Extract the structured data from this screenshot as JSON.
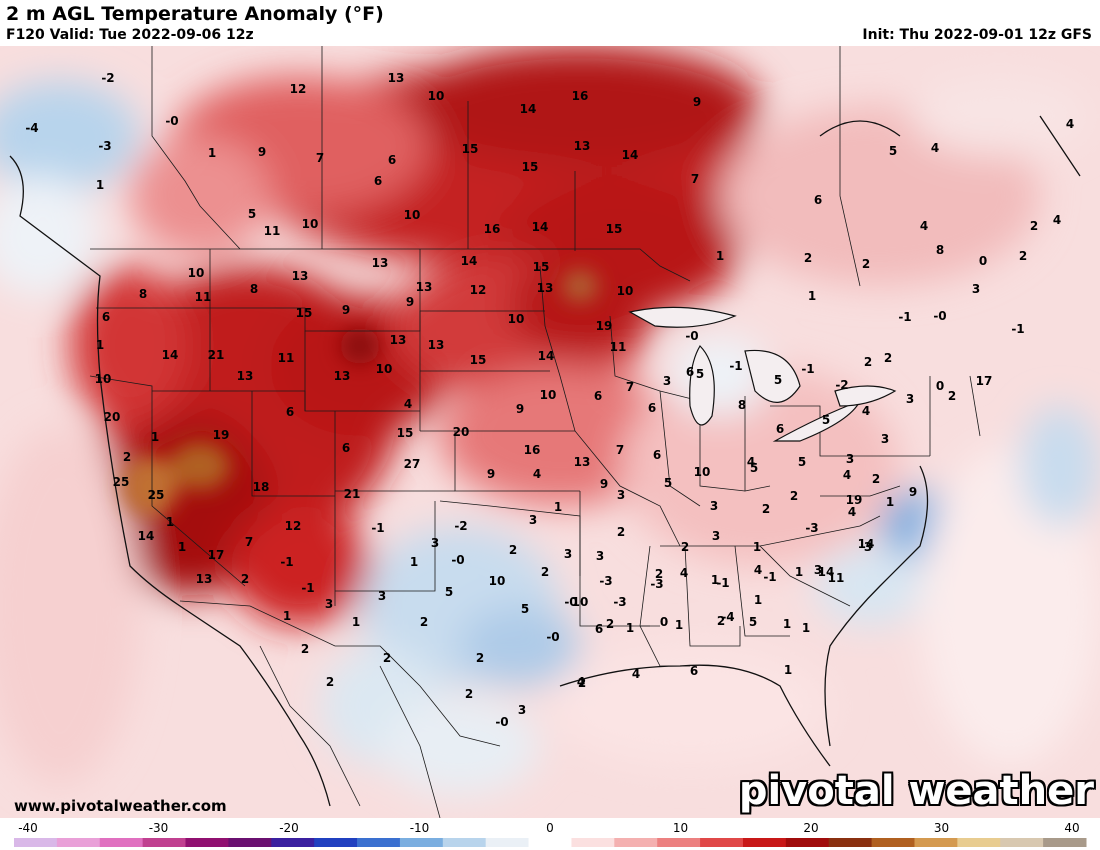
{
  "header": {
    "title": "2 m AGL Temperature Anomaly (°F)",
    "valid": "F120 Valid: Tue 2022-09-06 12z",
    "init": "Init: Thu 2022-09-01 12z GFS"
  },
  "footer": {
    "website": "www.pivotalweather.com",
    "brand": "pivotal weather"
  },
  "colorbar": {
    "ticks": [
      "-40",
      "-30",
      "-20",
      "-10",
      "0",
      "10",
      "20",
      "30",
      "40"
    ],
    "colors": [
      "#d9b8e8",
      "#e9a0d8",
      "#e070c0",
      "#c04090",
      "#901070",
      "#6a1070",
      "#3a20a0",
      "#2040c0",
      "#3a70d0",
      "#7aaee0",
      "#b8d4ec",
      "#eaf0f6",
      "#ffffff",
      "#fbe0e0",
      "#f4b0b0",
      "#ec8080",
      "#e04848",
      "#c81818",
      "#a00c0c",
      "#8a3010",
      "#b06020",
      "#d49a50",
      "#e8cc90",
      "#d8c8b0",
      "#a89a8a"
    ]
  },
  "map_labels": [
    {
      "t": "-2"
    },
    {
      "t": "-4"
    },
    {
      "t": "-3"
    },
    {
      "t": "-0"
    },
    {
      "t": "1"
    },
    {
      "t": "12"
    },
    {
      "t": "13"
    },
    {
      "t": "10"
    },
    {
      "t": "14"
    },
    {
      "t": "16"
    },
    {
      "t": "9"
    },
    {
      "t": "1"
    },
    {
      "t": "9"
    },
    {
      "t": "7"
    },
    {
      "t": "6"
    },
    {
      "t": "15"
    },
    {
      "t": "13"
    },
    {
      "t": "14"
    },
    {
      "t": "5"
    },
    {
      "t": "4"
    },
    {
      "t": "4"
    },
    {
      "t": "6"
    },
    {
      "t": "15"
    },
    {
      "t": "10"
    },
    {
      "t": "7"
    },
    {
      "t": "5"
    },
    {
      "t": "11"
    },
    {
      "t": "10"
    },
    {
      "t": "16"
    },
    {
      "t": "14"
    },
    {
      "t": "15"
    },
    {
      "t": "6"
    },
    {
      "t": "4"
    },
    {
      "t": "4"
    },
    {
      "t": "2"
    },
    {
      "t": "10"
    },
    {
      "t": "11"
    },
    {
      "t": "8"
    },
    {
      "t": "13"
    },
    {
      "t": "13"
    },
    {
      "t": "14"
    },
    {
      "t": "15"
    },
    {
      "t": "13"
    },
    {
      "t": "13"
    },
    {
      "t": "12"
    },
    {
      "t": "10"
    },
    {
      "t": "1"
    },
    {
      "t": "2"
    },
    {
      "t": "2"
    },
    {
      "t": "0"
    },
    {
      "t": "8"
    },
    {
      "t": "8"
    },
    {
      "t": "15"
    },
    {
      "t": "9"
    },
    {
      "t": "10"
    },
    {
      "t": "2"
    },
    {
      "t": "1"
    },
    {
      "t": "6"
    },
    {
      "t": "13"
    },
    {
      "t": "19"
    },
    {
      "t": "-0"
    },
    {
      "t": "-1"
    },
    {
      "t": "-0"
    },
    {
      "t": "3"
    },
    {
      "t": "1"
    },
    {
      "t": "14"
    },
    {
      "t": "21"
    },
    {
      "t": "11"
    },
    {
      "t": "13"
    },
    {
      "t": "13"
    },
    {
      "t": "10"
    },
    {
      "t": "11"
    },
    {
      "t": "-1"
    },
    {
      "t": "2"
    },
    {
      "t": "6"
    },
    {
      "t": "14"
    },
    {
      "t": "15"
    },
    {
      "t": "13"
    },
    {
      "t": "10"
    },
    {
      "t": "9"
    },
    {
      "t": "10"
    },
    {
      "t": "7"
    },
    {
      "t": "3"
    },
    {
      "t": "5"
    },
    {
      "t": "-1"
    },
    {
      "t": "5"
    },
    {
      "t": "-1"
    },
    {
      "t": "-2"
    },
    {
      "t": "2"
    },
    {
      "t": "0"
    },
    {
      "t": "17"
    },
    {
      "t": "20"
    },
    {
      "t": "6"
    },
    {
      "t": "4"
    },
    {
      "t": "9"
    },
    {
      "t": "6"
    },
    {
      "t": "6"
    },
    {
      "t": "8"
    },
    {
      "t": "6"
    },
    {
      "t": "5"
    },
    {
      "t": "4"
    },
    {
      "t": "3"
    },
    {
      "t": "2"
    },
    {
      "t": "1"
    },
    {
      "t": "19"
    },
    {
      "t": "15"
    },
    {
      "t": "20"
    },
    {
      "t": "6"
    },
    {
      "t": "16"
    },
    {
      "t": "7"
    },
    {
      "t": "6"
    },
    {
      "t": "10"
    },
    {
      "t": "4"
    },
    {
      "t": "5"
    },
    {
      "t": "3"
    },
    {
      "t": "3"
    },
    {
      "t": "2"
    },
    {
      "t": "25"
    },
    {
      "t": "25"
    },
    {
      "t": "27"
    },
    {
      "t": "9"
    },
    {
      "t": "4"
    },
    {
      "t": "9"
    },
    {
      "t": "5"
    },
    {
      "t": "5"
    },
    {
      "t": "4"
    },
    {
      "t": "2"
    },
    {
      "t": "1"
    },
    {
      "t": "1"
    },
    {
      "t": "18"
    },
    {
      "t": "21"
    },
    {
      "t": "13"
    },
    {
      "t": "3"
    },
    {
      "t": "3"
    },
    {
      "t": "2"
    },
    {
      "t": "2"
    },
    {
      "t": "4"
    },
    {
      "t": "9"
    },
    {
      "t": "14"
    },
    {
      "t": "7"
    },
    {
      "t": "12"
    },
    {
      "t": "-1"
    },
    {
      "t": "-2"
    },
    {
      "t": "3"
    },
    {
      "t": "3"
    },
    {
      "t": "1"
    },
    {
      "t": "2"
    },
    {
      "t": "2"
    },
    {
      "t": "3"
    },
    {
      "t": "1"
    },
    {
      "t": "-3"
    },
    {
      "t": "19"
    },
    {
      "t": "14"
    },
    {
      "t": "17"
    },
    {
      "t": "1"
    },
    {
      "t": "-1"
    },
    {
      "t": "1"
    },
    {
      "t": "-0"
    },
    {
      "t": "2"
    },
    {
      "t": "3"
    },
    {
      "t": "3"
    },
    {
      "t": "4"
    },
    {
      "t": "1"
    },
    {
      "t": "-1"
    },
    {
      "t": "11"
    },
    {
      "t": "14"
    },
    {
      "t": "13"
    },
    {
      "t": "2"
    },
    {
      "t": "-1"
    },
    {
      "t": "3"
    },
    {
      "t": "5"
    },
    {
      "t": "10"
    },
    {
      "t": "2"
    },
    {
      "t": "-3"
    },
    {
      "t": "-3"
    },
    {
      "t": "-1"
    },
    {
      "t": "1"
    },
    {
      "t": "3"
    },
    {
      "t": "3"
    },
    {
      "t": "1"
    },
    {
      "t": "-3"
    },
    {
      "t": "10"
    },
    {
      "t": "2"
    },
    {
      "t": "-4"
    },
    {
      "t": "1"
    },
    {
      "t": "5"
    },
    {
      "t": "1"
    },
    {
      "t": "1"
    },
    {
      "t": "1"
    },
    {
      "t": "2"
    },
    {
      "t": "5"
    },
    {
      "t": "-0"
    },
    {
      "t": "1"
    },
    {
      "t": "0"
    },
    {
      "t": "2"
    },
    {
      "t": "1"
    },
    {
      "t": "4"
    },
    {
      "t": "2"
    },
    {
      "t": "3"
    },
    {
      "t": "2"
    },
    {
      "t": "2"
    },
    {
      "t": "2"
    },
    {
      "t": "-0"
    },
    {
      "t": "6"
    },
    {
      "t": "4"
    },
    {
      "t": "4"
    },
    {
      "t": "6"
    },
    {
      "t": "1"
    },
    {
      "t": "2"
    },
    {
      "t": "2"
    },
    {
      "t": "3"
    },
    {
      "t": "-0"
    },
    {
      "t": "2"
    }
  ]
}
